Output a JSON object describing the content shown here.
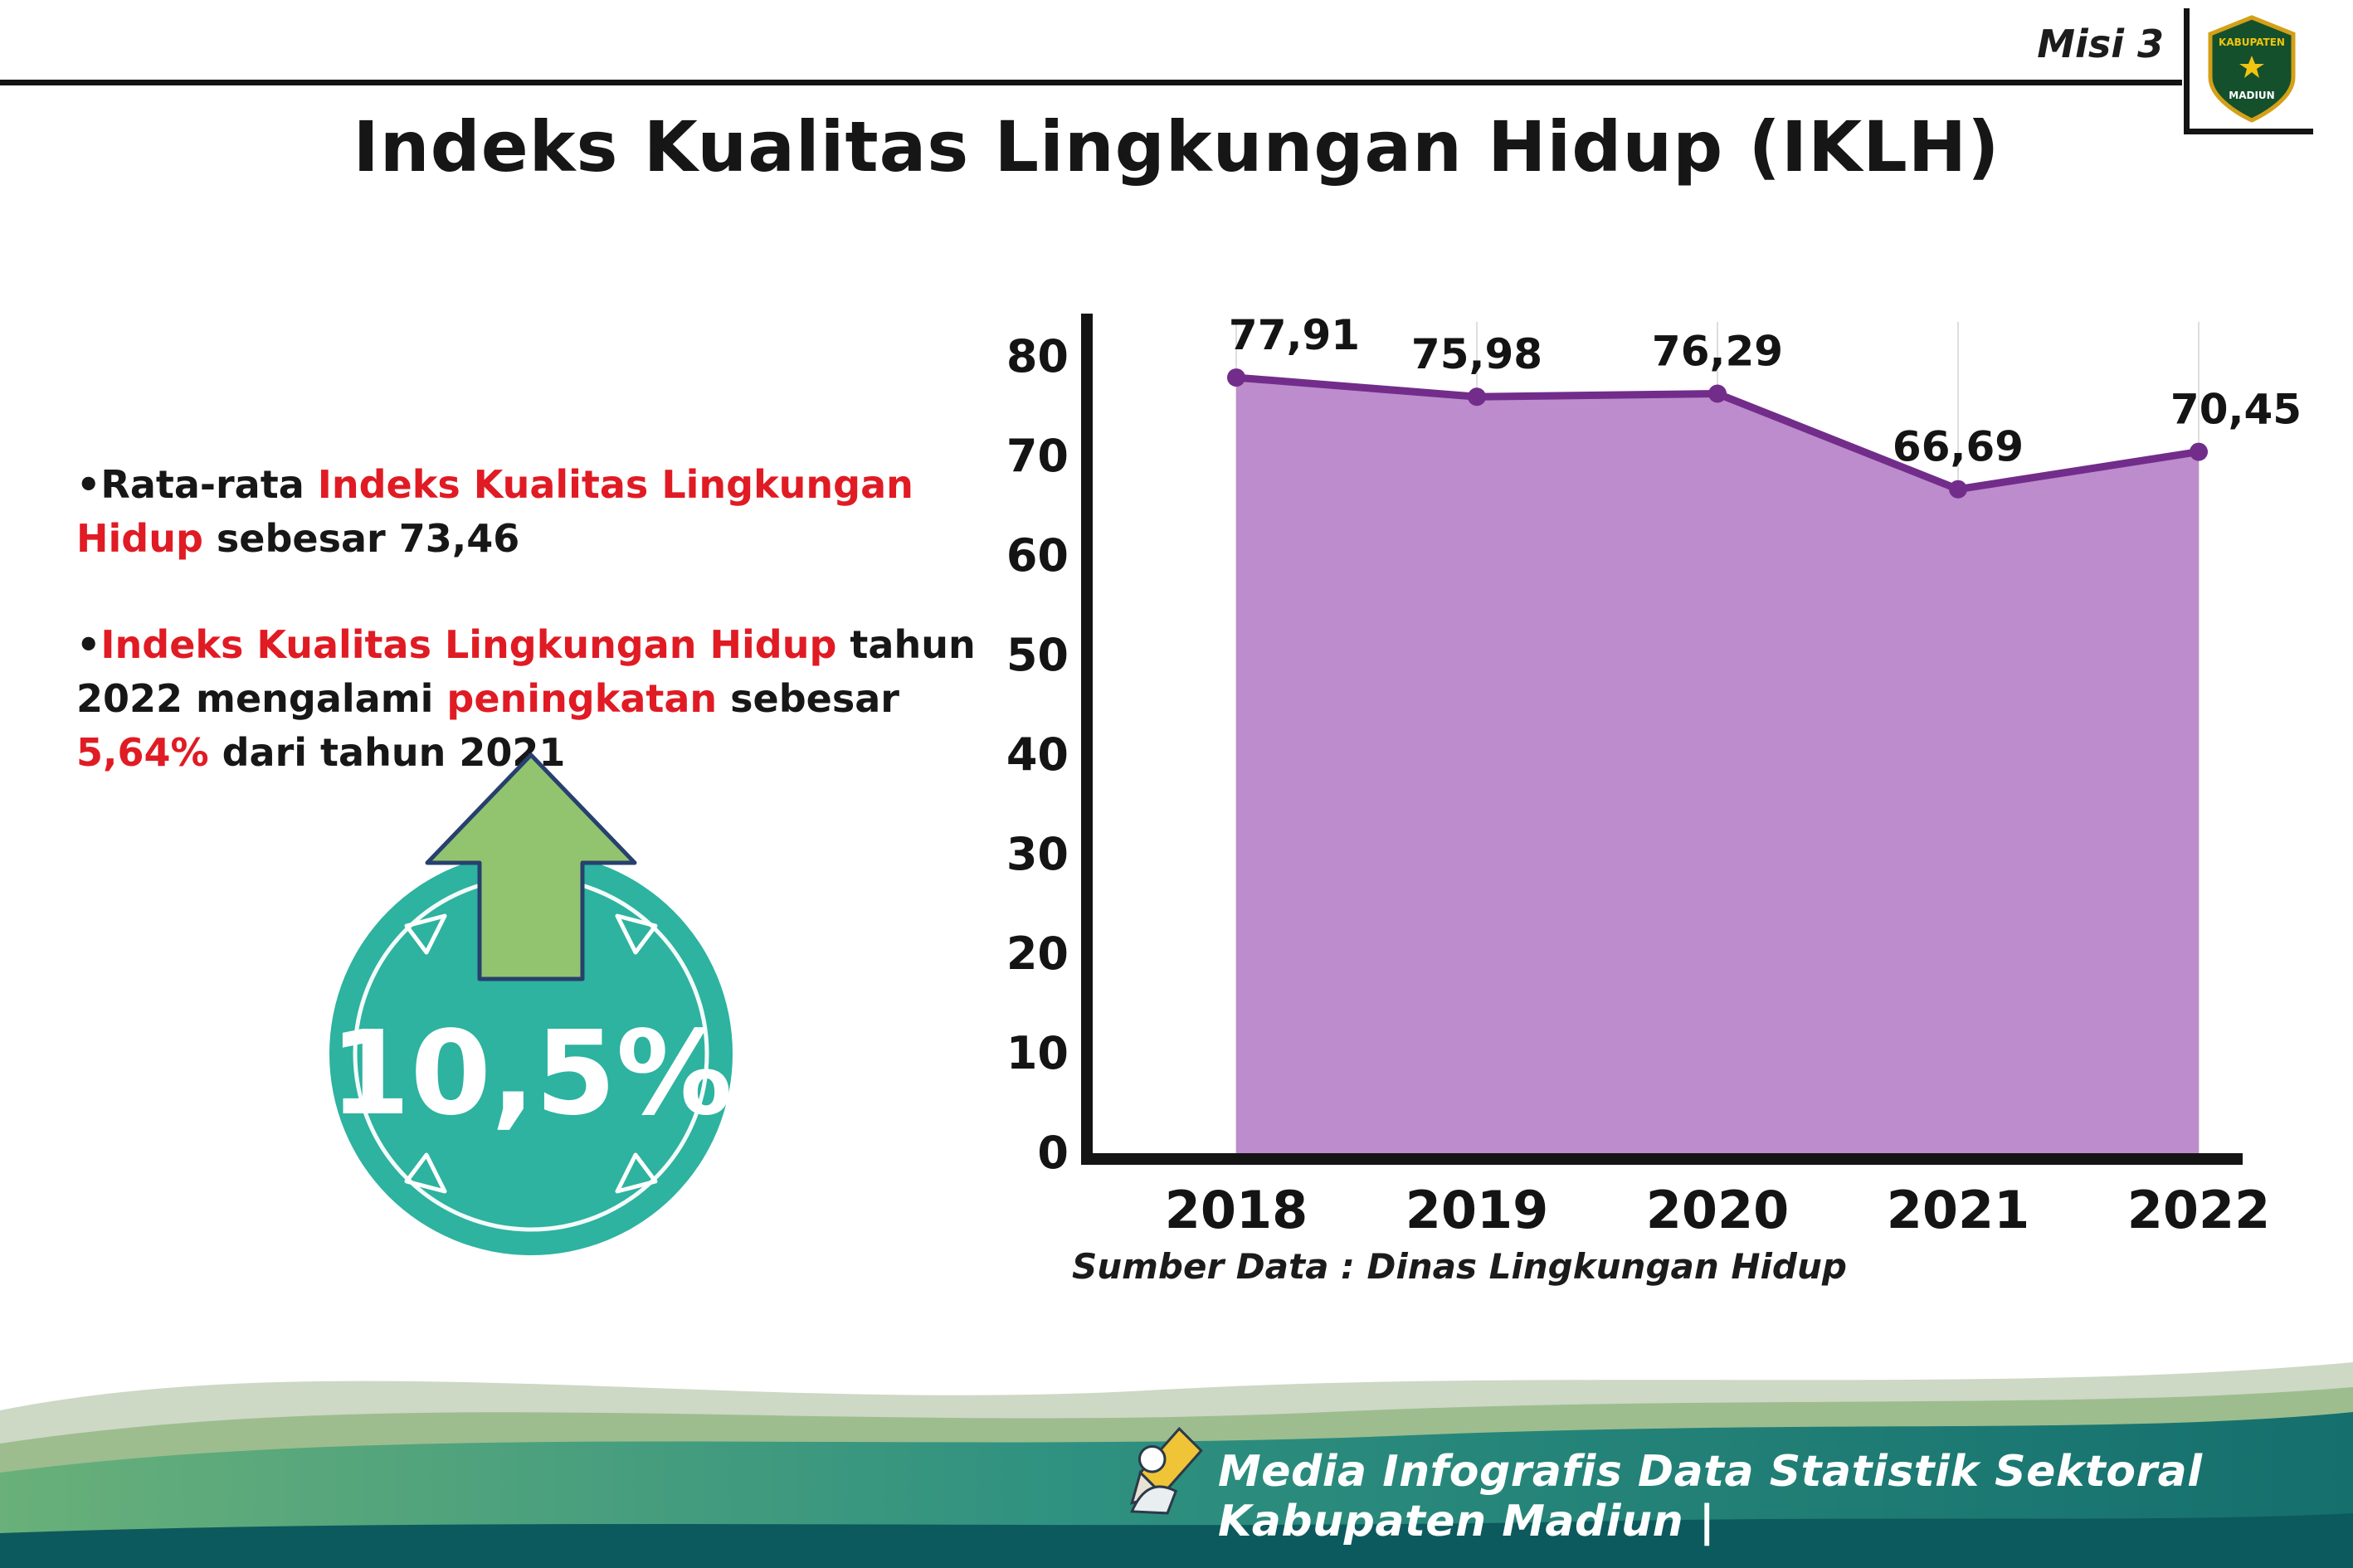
{
  "header": {
    "misi_label": "Misi 3",
    "logo": {
      "top_text": "KABUPATEN",
      "bottom_text": "MADIUN"
    },
    "title": "Indeks Kualitas Lingkungan Hidup (IKLH)"
  },
  "bullets": [
    {
      "marker": "•",
      "segments": [
        {
          "text": "Rata-rata "
        },
        {
          "text": "Indeks Kualitas Lingkungan Hidup"
        },
        {
          "text": " sebesar 73,46"
        }
      ]
    },
    {
      "marker": "•",
      "segments": [
        {
          "text": "Indeks Kualitas Lingkungan Hidup"
        },
        {
          "text": " tahun 2022 mengalami "
        },
        {
          "text": "peningkatan"
        },
        {
          "text": " sebesar "
        },
        {
          "text": "5,64%"
        },
        {
          "text": " dari tahun 2021"
        }
      ]
    }
  ],
  "highlight": {
    "value": "10,5%"
  },
  "chart_data": {
    "type": "area",
    "title": "Indeks Kualitas Lingkungan Hidup (IKLH)",
    "categories": [
      "2018",
      "2019",
      "2020",
      "2021",
      "2022"
    ],
    "values": [
      77.91,
      75.98,
      76.29,
      66.69,
      70.45
    ],
    "point_labels": [
      "77,91",
      "75,98",
      "76,29",
      "66,69",
      "70,45"
    ],
    "yticks": [
      0,
      10,
      20,
      30,
      40,
      50,
      60,
      70,
      80
    ],
    "ylim": [
      0,
      80
    ],
    "xlabel": "",
    "ylabel": "",
    "grid": "vertical",
    "legend": "none",
    "colors": {
      "area_fill": "#bd8ccd",
      "line": "#722d8b",
      "marker": "#722d8b",
      "label": "#141414",
      "axis": "#141414",
      "grid": "#dedede"
    }
  },
  "badge": {
    "circle_color": "#2db3a0",
    "arrow_color": "#92c46f",
    "arrow_outline": "#27406e"
  },
  "source": "Sumber Data : Dinas Lingkungan Hidup",
  "footer": {
    "credit": "Media Infografis Data Statistik Sektoral Kabupaten Madiun |"
  }
}
